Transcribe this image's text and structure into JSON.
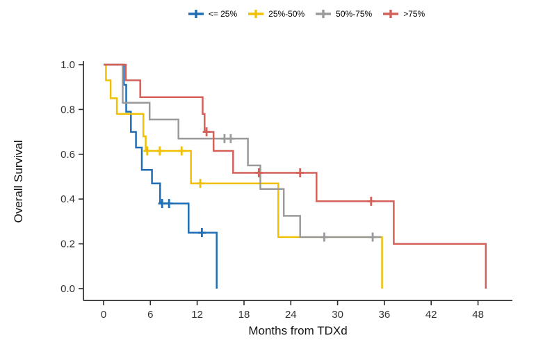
{
  "figure": {
    "background": "#ffffff",
    "axis_color": "#2b2b2b",
    "tick_label_color": "#333333"
  },
  "chart_data": {
    "type": "line",
    "subtype": "kaplan-meier-step-curves",
    "title": "",
    "xlabel": "Months from TDXd",
    "ylabel": "Overall Survival",
    "x_ticks": [
      0,
      6,
      12,
      18,
      24,
      30,
      36,
      42,
      48
    ],
    "y_ticks": [
      "0.0",
      "0.2",
      "0.4",
      "0.6",
      "0.8",
      "1.0"
    ],
    "xlim": [
      0,
      52
    ],
    "ylim": [
      0.0,
      1.0
    ],
    "grid": false,
    "legend_position": "top",
    "series": [
      {
        "name": "<= 25%",
        "color": "#1f6eb5",
        "steps": [
          [
            0,
            1.0
          ],
          [
            2.6,
            0.91
          ],
          [
            2.9,
            0.79
          ],
          [
            3.5,
            0.7
          ],
          [
            4.15,
            0.63
          ],
          [
            4.9,
            0.53
          ],
          [
            6.2,
            0.47
          ],
          [
            7.25,
            0.38
          ],
          [
            10.9,
            0.25
          ],
          [
            14.5,
            0.0
          ]
        ],
        "censors": [
          [
            7.5,
            0.38
          ],
          [
            8.4,
            0.38
          ],
          [
            12.6,
            0.25
          ]
        ]
      },
      {
        "name": "25%-50%",
        "color": "#efc004",
        "steps": [
          [
            0,
            1.0
          ],
          [
            0.3,
            0.93
          ],
          [
            0.9,
            0.85
          ],
          [
            1.7,
            0.78
          ],
          [
            5.1,
            0.68
          ],
          [
            5.4,
            0.615
          ],
          [
            11.2,
            0.47
          ],
          [
            22.4,
            0.23
          ],
          [
            35.7,
            0.0
          ]
        ],
        "censors": [
          [
            5.6,
            0.615
          ],
          [
            7.2,
            0.615
          ],
          [
            10.0,
            0.615
          ],
          [
            12.4,
            0.47
          ]
        ]
      },
      {
        "name": "50%-75%",
        "color": "#9a9a9a",
        "steps": [
          [
            0,
            1.0
          ],
          [
            2.45,
            0.83
          ],
          [
            5.9,
            0.755
          ],
          [
            9.6,
            0.67
          ],
          [
            18.5,
            0.55
          ],
          [
            20.1,
            0.445
          ],
          [
            23.1,
            0.325
          ],
          [
            25.2,
            0.23
          ]
        ],
        "censors": [
          [
            15.5,
            0.67
          ],
          [
            16.3,
            0.67
          ],
          [
            28.3,
            0.23
          ],
          [
            34.5,
            0.23
          ]
        ],
        "end_time": 35.6
      },
      {
        "name": ">75%",
        "color": "#d4605a",
        "steps": [
          [
            0,
            1.0
          ],
          [
            2.85,
            0.93
          ],
          [
            4.7,
            0.855
          ],
          [
            12.7,
            0.78
          ],
          [
            12.95,
            0.7
          ],
          [
            14.1,
            0.615
          ],
          [
            16.6,
            0.517
          ],
          [
            27.3,
            0.39
          ],
          [
            37.2,
            0.2
          ],
          [
            49,
            0.0
          ]
        ],
        "censors": [
          [
            13.2,
            0.7
          ],
          [
            19.9,
            0.517
          ],
          [
            25.2,
            0.517
          ],
          [
            34.3,
            0.39
          ]
        ]
      }
    ]
  }
}
